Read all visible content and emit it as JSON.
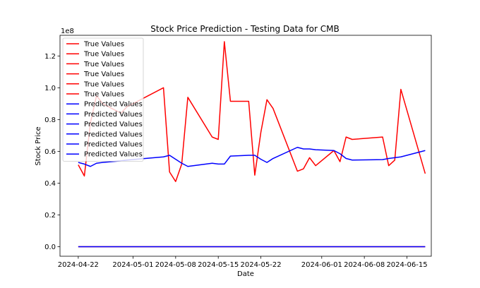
{
  "chart_data": {
    "type": "line",
    "title": "Stock Price Prediction - Testing Data for CMB",
    "xlabel": "Date",
    "ylabel": "Stock Price",
    "y_offset_label": "1e8",
    "xlim": [
      "2024-04-19",
      "2024-06-19"
    ],
    "ylim": [
      -0.06,
      1.33
    ],
    "y_scale_factor": 100000000,
    "grid": false,
    "legend_placement": "top-left",
    "x_ticks": [
      {
        "date": "2024-04-22",
        "label": "2024-04-22"
      },
      {
        "date": "2024-05-01",
        "label": "2024-05-01"
      },
      {
        "date": "2024-05-08",
        "label": "2024-05-08"
      },
      {
        "date": "2024-05-15",
        "label": "2024-05-15"
      },
      {
        "date": "2024-05-22",
        "label": "2024-05-22"
      },
      {
        "date": "2024-06-01",
        "label": "2024-06-01"
      },
      {
        "date": "2024-06-08",
        "label": "2024-06-08"
      },
      {
        "date": "2024-06-15",
        "label": "2024-06-15"
      }
    ],
    "y_ticks": [
      {
        "value": 0.0,
        "label": "0.0"
      },
      {
        "value": 0.2,
        "label": "0.2"
      },
      {
        "value": 0.4,
        "label": "0.4"
      },
      {
        "value": 0.6,
        "label": "0.6"
      },
      {
        "value": 0.8,
        "label": "0.8"
      },
      {
        "value": 1.0,
        "label": "1.0"
      },
      {
        "value": 1.2,
        "label": "1.2"
      }
    ],
    "legend": [
      {
        "label": "True Values",
        "color": "#ff0000"
      },
      {
        "label": "True Values",
        "color": "#ff0000"
      },
      {
        "label": "True Values",
        "color": "#ff0000"
      },
      {
        "label": "True Values",
        "color": "#ff0000"
      },
      {
        "label": "True Values",
        "color": "#ff0000"
      },
      {
        "label": "True Values",
        "color": "#ff0000"
      },
      {
        "label": "Predicted Values",
        "color": "#0000ff"
      },
      {
        "label": "Predicted Values",
        "color": "#0000ff"
      },
      {
        "label": "Predicted Values",
        "color": "#0000ff"
      },
      {
        "label": "Predicted Values",
        "color": "#0000ff"
      },
      {
        "label": "Predicted Values",
        "color": "#0000ff"
      },
      {
        "label": "Predicted Values",
        "color": "#0000ff"
      }
    ],
    "series": [
      {
        "name": "True Values",
        "color": "#ff0000",
        "points": [
          [
            "2024-04-22",
            0.515
          ],
          [
            "2024-04-23",
            0.445
          ],
          [
            "2024-04-24",
            0.78
          ],
          [
            "2024-04-25",
            0.95
          ],
          [
            "2024-04-26",
            0.9
          ],
          [
            "2024-04-29",
            0.84
          ],
          [
            "2024-04-30",
            0.88
          ],
          [
            "2024-05-06",
            1.0
          ],
          [
            "2024-05-07",
            0.47
          ],
          [
            "2024-05-08",
            0.41
          ],
          [
            "2024-05-09",
            0.52
          ],
          [
            "2024-05-10",
            0.94
          ],
          [
            "2024-05-14",
            0.69
          ],
          [
            "2024-05-15",
            0.675
          ],
          [
            "2024-05-16",
            1.29
          ],
          [
            "2024-05-17",
            0.915
          ],
          [
            "2024-05-20",
            0.915
          ],
          [
            "2024-05-21",
            0.45
          ],
          [
            "2024-05-22",
            0.72
          ],
          [
            "2024-05-23",
            0.925
          ],
          [
            "2024-05-24",
            0.87
          ],
          [
            "2024-05-28",
            0.475
          ],
          [
            "2024-05-29",
            0.49
          ],
          [
            "2024-05-30",
            0.56
          ],
          [
            "2024-05-31",
            0.51
          ],
          [
            "2024-06-03",
            0.605
          ],
          [
            "2024-06-04",
            0.535
          ],
          [
            "2024-06-05",
            0.69
          ],
          [
            "2024-06-06",
            0.675
          ],
          [
            "2024-06-11",
            0.69
          ],
          [
            "2024-06-12",
            0.51
          ],
          [
            "2024-06-13",
            0.545
          ],
          [
            "2024-06-14",
            0.99
          ],
          [
            "2024-06-18",
            0.46
          ]
        ]
      },
      {
        "name": "Predicted Values",
        "color": "#0000ff",
        "points": [
          [
            "2024-04-22",
            0.53
          ],
          [
            "2024-04-23",
            0.52
          ],
          [
            "2024-04-24",
            0.505
          ],
          [
            "2024-04-25",
            0.525
          ],
          [
            "2024-04-26",
            0.53
          ],
          [
            "2024-04-29",
            0.54
          ],
          [
            "2024-04-30",
            0.545
          ],
          [
            "2024-05-06",
            0.565
          ],
          [
            "2024-05-07",
            0.575
          ],
          [
            "2024-05-08",
            0.55
          ],
          [
            "2024-05-09",
            0.525
          ],
          [
            "2024-05-10",
            0.505
          ],
          [
            "2024-05-14",
            0.525
          ],
          [
            "2024-05-15",
            0.52
          ],
          [
            "2024-05-16",
            0.52
          ],
          [
            "2024-05-17",
            0.57
          ],
          [
            "2024-05-20",
            0.575
          ],
          [
            "2024-05-21",
            0.575
          ],
          [
            "2024-05-22",
            0.55
          ],
          [
            "2024-05-23",
            0.53
          ],
          [
            "2024-05-24",
            0.555
          ],
          [
            "2024-05-28",
            0.625
          ],
          [
            "2024-05-29",
            0.615
          ],
          [
            "2024-05-30",
            0.615
          ],
          [
            "2024-05-31",
            0.61
          ],
          [
            "2024-06-03",
            0.605
          ],
          [
            "2024-06-04",
            0.585
          ],
          [
            "2024-06-05",
            0.555
          ],
          [
            "2024-06-06",
            0.545
          ],
          [
            "2024-06-11",
            0.548
          ],
          [
            "2024-06-12",
            0.555
          ],
          [
            "2024-06-13",
            0.56
          ],
          [
            "2024-06-14",
            0.565
          ],
          [
            "2024-06-18",
            0.605
          ]
        ]
      },
      {
        "name": "True Values",
        "color": "#ff0000",
        "points": [
          [
            "2024-04-22",
            0.0
          ],
          [
            "2024-06-18",
            0.0
          ]
        ]
      },
      {
        "name": "Predicted Values",
        "color": "#0000ff",
        "points": [
          [
            "2024-04-22",
            0.0
          ],
          [
            "2024-06-18",
            0.0
          ]
        ]
      }
    ]
  }
}
